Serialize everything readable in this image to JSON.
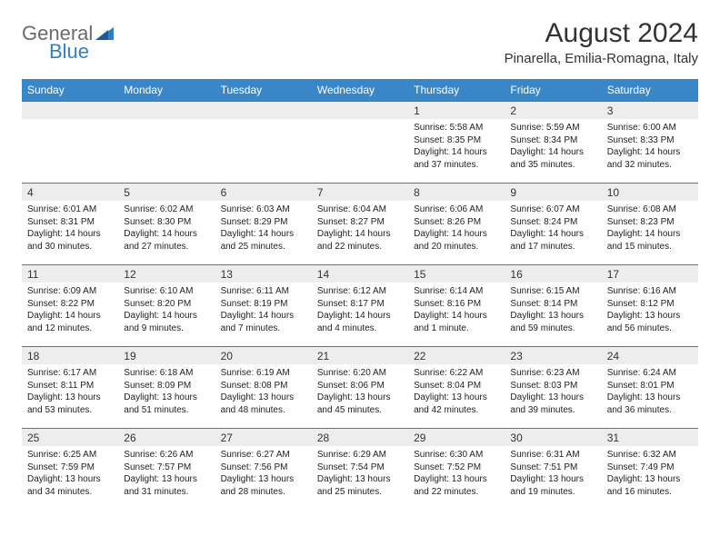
{
  "logo": {
    "text1": "General",
    "text2": "Blue"
  },
  "title": "August 2024",
  "location": "Pinarella, Emilia-Romagna, Italy",
  "colors": {
    "header_bg": "#3a87c8",
    "header_text": "#ffffff",
    "border": "#2f7fc2",
    "daynum_bg": "#ededed",
    "text": "#333333",
    "logo_blue": "#2f7fc2",
    "logo_gray": "#6a6a6a"
  },
  "dow": [
    "Sunday",
    "Monday",
    "Tuesday",
    "Wednesday",
    "Thursday",
    "Friday",
    "Saturday"
  ],
  "weeks": [
    [
      null,
      null,
      null,
      null,
      {
        "n": "1",
        "sunrise": "5:58 AM",
        "sunset": "8:35 PM",
        "daylight": "14 hours and 37 minutes."
      },
      {
        "n": "2",
        "sunrise": "5:59 AM",
        "sunset": "8:34 PM",
        "daylight": "14 hours and 35 minutes."
      },
      {
        "n": "3",
        "sunrise": "6:00 AM",
        "sunset": "8:33 PM",
        "daylight": "14 hours and 32 minutes."
      }
    ],
    [
      {
        "n": "4",
        "sunrise": "6:01 AM",
        "sunset": "8:31 PM",
        "daylight": "14 hours and 30 minutes."
      },
      {
        "n": "5",
        "sunrise": "6:02 AM",
        "sunset": "8:30 PM",
        "daylight": "14 hours and 27 minutes."
      },
      {
        "n": "6",
        "sunrise": "6:03 AM",
        "sunset": "8:29 PM",
        "daylight": "14 hours and 25 minutes."
      },
      {
        "n": "7",
        "sunrise": "6:04 AM",
        "sunset": "8:27 PM",
        "daylight": "14 hours and 22 minutes."
      },
      {
        "n": "8",
        "sunrise": "6:06 AM",
        "sunset": "8:26 PM",
        "daylight": "14 hours and 20 minutes."
      },
      {
        "n": "9",
        "sunrise": "6:07 AM",
        "sunset": "8:24 PM",
        "daylight": "14 hours and 17 minutes."
      },
      {
        "n": "10",
        "sunrise": "6:08 AM",
        "sunset": "8:23 PM",
        "daylight": "14 hours and 15 minutes."
      }
    ],
    [
      {
        "n": "11",
        "sunrise": "6:09 AM",
        "sunset": "8:22 PM",
        "daylight": "14 hours and 12 minutes."
      },
      {
        "n": "12",
        "sunrise": "6:10 AM",
        "sunset": "8:20 PM",
        "daylight": "14 hours and 9 minutes."
      },
      {
        "n": "13",
        "sunrise": "6:11 AM",
        "sunset": "8:19 PM",
        "daylight": "14 hours and 7 minutes."
      },
      {
        "n": "14",
        "sunrise": "6:12 AM",
        "sunset": "8:17 PM",
        "daylight": "14 hours and 4 minutes."
      },
      {
        "n": "15",
        "sunrise": "6:14 AM",
        "sunset": "8:16 PM",
        "daylight": "14 hours and 1 minute."
      },
      {
        "n": "16",
        "sunrise": "6:15 AM",
        "sunset": "8:14 PM",
        "daylight": "13 hours and 59 minutes."
      },
      {
        "n": "17",
        "sunrise": "6:16 AM",
        "sunset": "8:12 PM",
        "daylight": "13 hours and 56 minutes."
      }
    ],
    [
      {
        "n": "18",
        "sunrise": "6:17 AM",
        "sunset": "8:11 PM",
        "daylight": "13 hours and 53 minutes."
      },
      {
        "n": "19",
        "sunrise": "6:18 AM",
        "sunset": "8:09 PM",
        "daylight": "13 hours and 51 minutes."
      },
      {
        "n": "20",
        "sunrise": "6:19 AM",
        "sunset": "8:08 PM",
        "daylight": "13 hours and 48 minutes."
      },
      {
        "n": "21",
        "sunrise": "6:20 AM",
        "sunset": "8:06 PM",
        "daylight": "13 hours and 45 minutes."
      },
      {
        "n": "22",
        "sunrise": "6:22 AM",
        "sunset": "8:04 PM",
        "daylight": "13 hours and 42 minutes."
      },
      {
        "n": "23",
        "sunrise": "6:23 AM",
        "sunset": "8:03 PM",
        "daylight": "13 hours and 39 minutes."
      },
      {
        "n": "24",
        "sunrise": "6:24 AM",
        "sunset": "8:01 PM",
        "daylight": "13 hours and 36 minutes."
      }
    ],
    [
      {
        "n": "25",
        "sunrise": "6:25 AM",
        "sunset": "7:59 PM",
        "daylight": "13 hours and 34 minutes."
      },
      {
        "n": "26",
        "sunrise": "6:26 AM",
        "sunset": "7:57 PM",
        "daylight": "13 hours and 31 minutes."
      },
      {
        "n": "27",
        "sunrise": "6:27 AM",
        "sunset": "7:56 PM",
        "daylight": "13 hours and 28 minutes."
      },
      {
        "n": "28",
        "sunrise": "6:29 AM",
        "sunset": "7:54 PM",
        "daylight": "13 hours and 25 minutes."
      },
      {
        "n": "29",
        "sunrise": "6:30 AM",
        "sunset": "7:52 PM",
        "daylight": "13 hours and 22 minutes."
      },
      {
        "n": "30",
        "sunrise": "6:31 AM",
        "sunset": "7:51 PM",
        "daylight": "13 hours and 19 minutes."
      },
      {
        "n": "31",
        "sunrise": "6:32 AM",
        "sunset": "7:49 PM",
        "daylight": "13 hours and 16 minutes."
      }
    ]
  ],
  "labels": {
    "sunrise": "Sunrise: ",
    "sunset": "Sunset: ",
    "daylight": "Daylight: "
  }
}
